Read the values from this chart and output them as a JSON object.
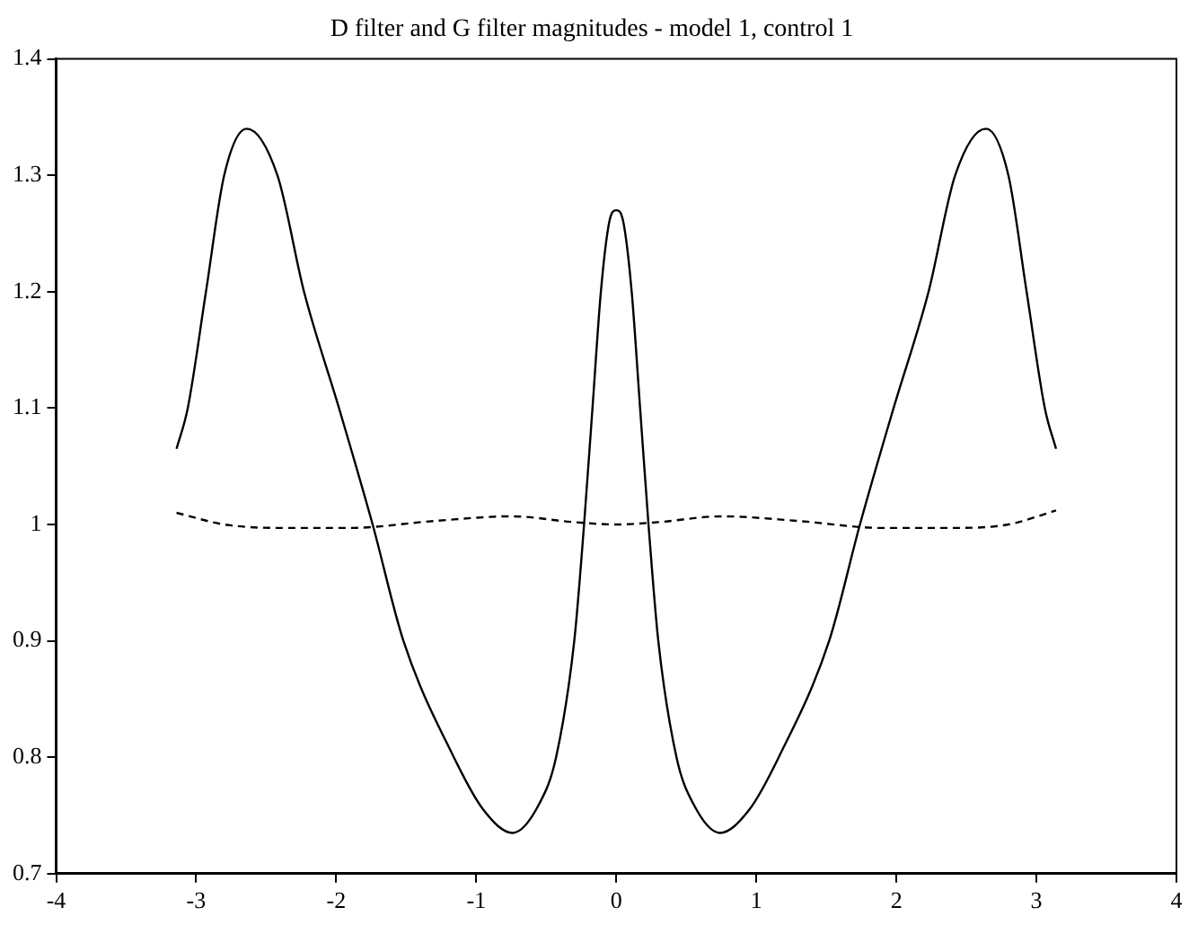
{
  "chart_data": {
    "type": "line",
    "title": "D filter and G filter magnitudes - model 1, control 1",
    "xlim": [
      -4,
      4
    ],
    "xticks": [
      -4,
      -3,
      -2,
      -1,
      0,
      1,
      2,
      3,
      4
    ],
    "ylim": [
      0.7,
      1.4
    ],
    "yticks": [
      0.7,
      0.8,
      0.9,
      1,
      1.1,
      1.2,
      1.3,
      1.4
    ],
    "grid": false,
    "legend": false,
    "marker": "none",
    "series": [
      {
        "color": "#000000",
        "line_style": "solid",
        "x": [
          -3.14,
          -3.06,
          -2.93,
          -2.8,
          -2.64,
          -2.42,
          -2.23,
          -1.98,
          -1.74,
          -1.52,
          -1.16,
          -0.95,
          -0.74,
          -0.55,
          -0.43,
          -0.3,
          -0.23,
          -0.17,
          -0.11,
          -0.05,
          0,
          0.05,
          0.11,
          0.17,
          0.23,
          0.3,
          0.43,
          0.55,
          0.74,
          0.95,
          1.16,
          1.52,
          1.74,
          1.98,
          2.23,
          2.42,
          2.64,
          2.8,
          2.93,
          3.06,
          3.14
        ],
        "values": [
          1.065,
          1.1,
          1.2,
          1.3,
          1.34,
          1.3,
          1.2,
          1.1,
          1.0,
          0.9,
          0.8,
          0.755,
          0.735,
          0.76,
          0.8,
          0.9,
          1.0,
          1.1,
          1.2,
          1.26,
          1.27,
          1.26,
          1.2,
          1.1,
          1.0,
          0.9,
          0.8,
          0.76,
          0.735,
          0.755,
          0.8,
          0.9,
          1.0,
          1.1,
          1.2,
          1.3,
          1.34,
          1.3,
          1.2,
          1.1,
          1.065
        ]
      },
      {
        "color": "#000000",
        "line_style": "dashed",
        "x": [
          -3.14,
          -2.8,
          -2.4,
          -1.9,
          -1.3,
          -0.75,
          -0.3,
          0,
          0.3,
          0.75,
          1.3,
          1.9,
          2.4,
          2.8,
          3.14
        ],
        "values": [
          1.01,
          1.0,
          0.997,
          0.997,
          1.003,
          1.007,
          1.002,
          1.0,
          1.002,
          1.007,
          1.003,
          0.997,
          0.997,
          1.0,
          1.012
        ]
      }
    ]
  }
}
